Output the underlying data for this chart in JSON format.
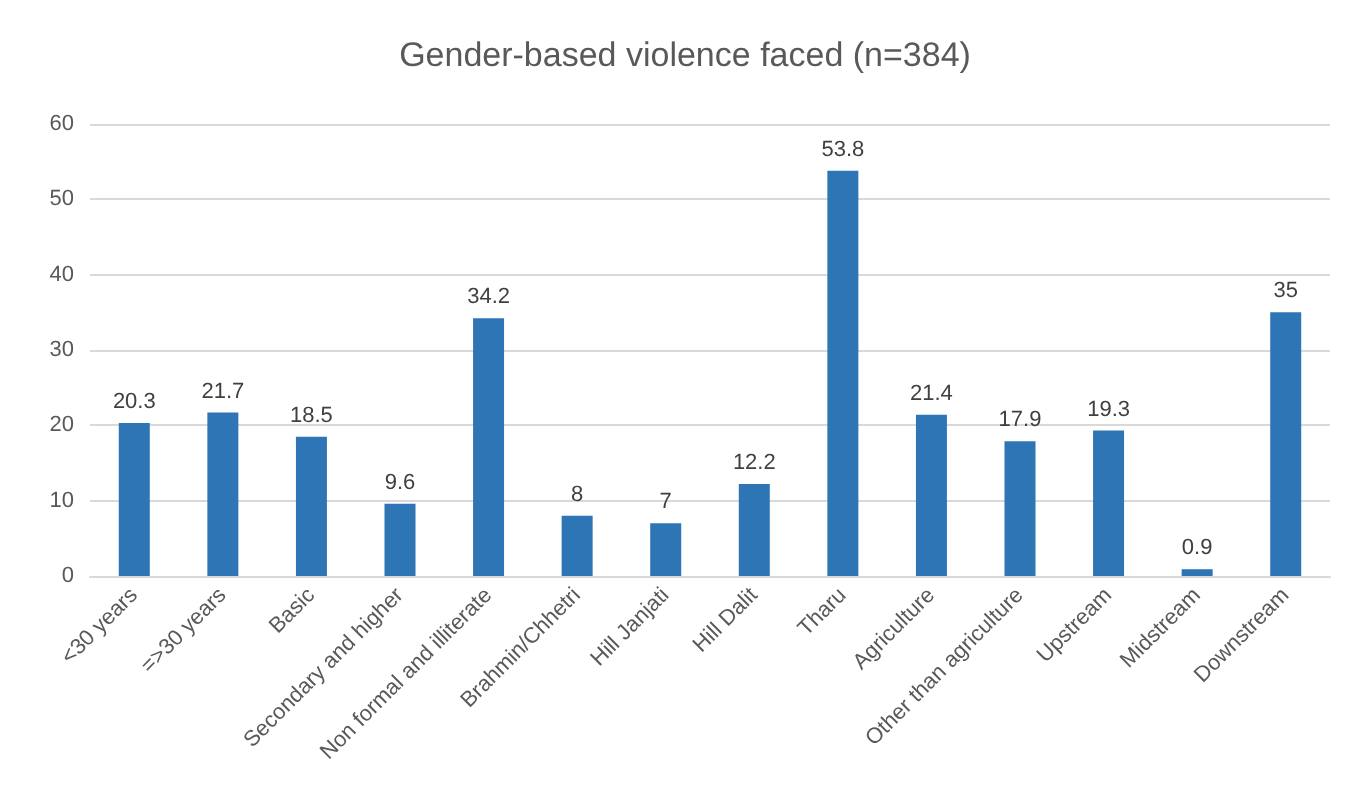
{
  "chart_data": {
    "type": "bar",
    "title": "Gender-based violence faced (n=384)",
    "categories": [
      "<30 years",
      "=>30 years",
      "Basic",
      "Secondary and higher",
      "Non formal and illiterate",
      "Brahmin/Chhetri",
      "Hill Janjati",
      "Hill Dalit",
      "Tharu",
      "Agriculture",
      "Other than agriculture",
      "Upstream",
      "Midstream",
      "Downstream"
    ],
    "values": [
      20.3,
      21.7,
      18.5,
      9.6,
      34.2,
      8,
      7,
      12.2,
      53.8,
      21.4,
      17.9,
      19.3,
      0.9,
      35
    ],
    "color": "#2e75b6",
    "ylim": [
      0,
      60
    ],
    "yticks": [
      0,
      10,
      20,
      30,
      40,
      50,
      60
    ],
    "grid": "y",
    "data_labels": true
  }
}
